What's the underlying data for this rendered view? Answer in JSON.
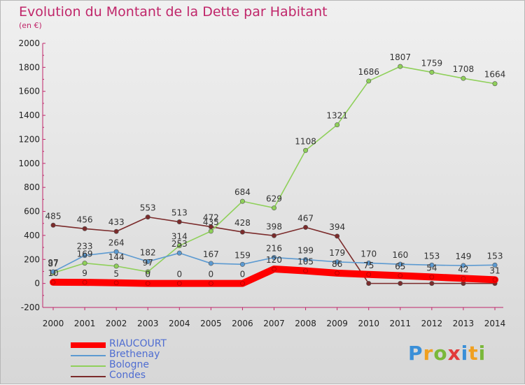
{
  "header": {
    "title": "Evolution du Montant de la Dette par Habitant",
    "subtitle": "(en €)"
  },
  "logo": {
    "text": "Proxiti"
  },
  "chart_data": {
    "type": "line",
    "title": "Evolution du Montant de la Dette par Habitant",
    "subtitle": "(en €)",
    "categories": [
      "2000",
      "2001",
      "2002",
      "2003",
      "2004",
      "2005",
      "2006",
      "2007",
      "2008",
      "2009",
      "2010",
      "2011",
      "2012",
      "2013",
      "2014"
    ],
    "ylim": [
      -200,
      2000
    ],
    "yticks": [
      -200,
      0,
      200,
      400,
      600,
      800,
      1000,
      1200,
      1400,
      1600,
      1800,
      2000
    ],
    "grid": false,
    "legend_position": "bottom-left",
    "series": [
      {
        "name": "Condes",
        "color": "#7b2b2b",
        "values": [
          485,
          456,
          433,
          553,
          513,
          472,
          428,
          398,
          467,
          394,
          0,
          0,
          0,
          0,
          0
        ],
        "labels": [
          "485",
          "456",
          "433",
          "553",
          "513",
          "472",
          "428",
          "398",
          "467",
          "394",
          "",
          "",
          "",
          "",
          ""
        ]
      },
      {
        "name": "Bologne",
        "color": "#8fd05a",
        "values": [
          87,
          169,
          144,
          97,
          314,
          435,
          684,
          629,
          1108,
          1321,
          1686,
          1807,
          1759,
          1708,
          1664
        ],
        "labels": [
          "87",
          "169",
          "144",
          "97",
          "314",
          "435",
          "684",
          "629",
          "1108",
          "1321",
          "1686",
          "1807",
          "1759",
          "1708",
          "1664"
        ]
      },
      {
        "name": "Brethenay",
        "color": "#5c9ad1",
        "values": [
          97,
          233,
          264,
          182,
          253,
          167,
          159,
          216,
          199,
          179,
          170,
          160,
          153,
          149,
          153
        ],
        "labels": [
          "97",
          "233",
          "264",
          "182",
          "253",
          "167",
          "159",
          "216",
          "199",
          "179",
          "170",
          "160",
          "153",
          "149",
          "153"
        ]
      },
      {
        "name": "RIAUCOURT",
        "color": "#ff0000",
        "values": [
          10,
          9,
          5,
          0,
          0,
          0,
          0,
          120,
          105,
          86,
          75,
          65,
          54,
          42,
          31
        ],
        "labels": [
          "10",
          "9",
          "5",
          "0",
          "0",
          "0",
          "0",
          "120",
          "105",
          "86",
          "75",
          "65",
          "54",
          "42",
          "31"
        ]
      }
    ]
  }
}
